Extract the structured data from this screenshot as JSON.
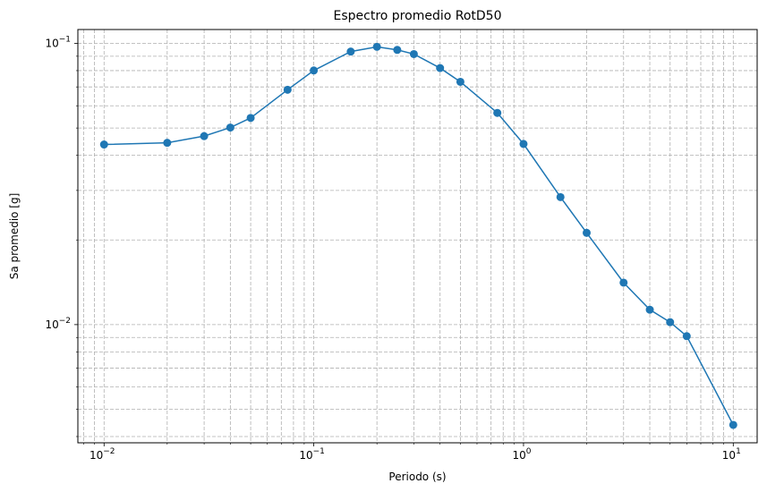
{
  "chart_data": {
    "type": "line",
    "title": "Espectro promedio RotD50",
    "xlabel": "Periodo (s)",
    "ylabel": "Sa promedio [g]",
    "xscale": "log",
    "yscale": "log",
    "xlim": [
      0.0075,
      13
    ],
    "ylim": [
      0.0038,
      0.112
    ],
    "grid": true,
    "grid_style": "dashed",
    "marker": "circle",
    "color": "#1f77b4",
    "x_ticks": [
      {
        "value": 0.01,
        "base": "10",
        "exp": "−2"
      },
      {
        "value": 0.1,
        "base": "10",
        "exp": "−1"
      },
      {
        "value": 1,
        "base": "10",
        "exp": "0"
      },
      {
        "value": 10,
        "base": "10",
        "exp": "1"
      }
    ],
    "y_ticks": [
      {
        "value": 0.01,
        "base": "10",
        "exp": "−2"
      },
      {
        "value": 0.1,
        "base": "10",
        "exp": "−1"
      }
    ],
    "series": [
      {
        "x": [
          0.01,
          0.02,
          0.03,
          0.04,
          0.05,
          0.075,
          0.1,
          0.15,
          0.2,
          0.25,
          0.3,
          0.4,
          0.5,
          0.75,
          1.0,
          1.5,
          2.0,
          3.0,
          4.0,
          5.0,
          6.0,
          10.0
        ],
        "y": [
          0.0437,
          0.0443,
          0.0468,
          0.0502,
          0.0543,
          0.0684,
          0.0801,
          0.0935,
          0.0972,
          0.0948,
          0.0916,
          0.0817,
          0.073,
          0.0566,
          0.0439,
          0.0284,
          0.0212,
          0.0141,
          0.0113,
          0.0102,
          0.0091,
          0.0044
        ]
      }
    ]
  }
}
